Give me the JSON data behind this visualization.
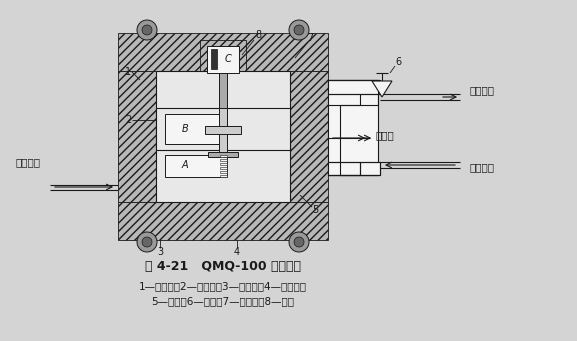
{
  "title": "图 4-21   QMQ-100 型气动阀",
  "caption_line1": "1—上阀体；2—中阀体；3—下阀体；4—排气口；",
  "caption_line2": "5—挡板；6—针阀；7—膜片组；8—弹簧",
  "bg_color": "#d4d4d4",
  "hatch_fc": "#b8b8b8",
  "inner_fc": "#e8e8e8",
  "white_fc": "#f5f5f5",
  "line_color": "#1a1a1a",
  "dark_fc": "#888888"
}
